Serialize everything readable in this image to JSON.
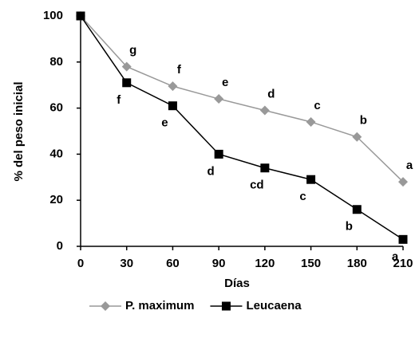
{
  "chart_data": {
    "type": "line",
    "xlabel": "Días",
    "ylabel": "% del peso inicial",
    "x": [
      0,
      30,
      60,
      90,
      120,
      150,
      180,
      210
    ],
    "xlim": [
      0,
      210
    ],
    "xticks": [
      0,
      30,
      60,
      90,
      120,
      150,
      180,
      210
    ],
    "ylim": [
      0,
      100
    ],
    "yticks": [
      0,
      20,
      40,
      60,
      80,
      100
    ],
    "legend": "bottom",
    "series": [
      {
        "name": "P. maximum",
        "color": "#999999",
        "marker": "diamond",
        "values": [
          100,
          78,
          69.5,
          64,
          59,
          54,
          47.5,
          28
        ],
        "letters": [
          null,
          "g",
          "f",
          "e",
          "d",
          "c",
          "b",
          "a"
        ]
      },
      {
        "name": "Leucaena",
        "color": "#000000",
        "marker": "square",
        "values": [
          100,
          71,
          61,
          40,
          34,
          29,
          16,
          3
        ],
        "letters": [
          null,
          "f",
          "e",
          "d",
          "cd",
          "c",
          "b",
          "a"
        ]
      }
    ]
  }
}
